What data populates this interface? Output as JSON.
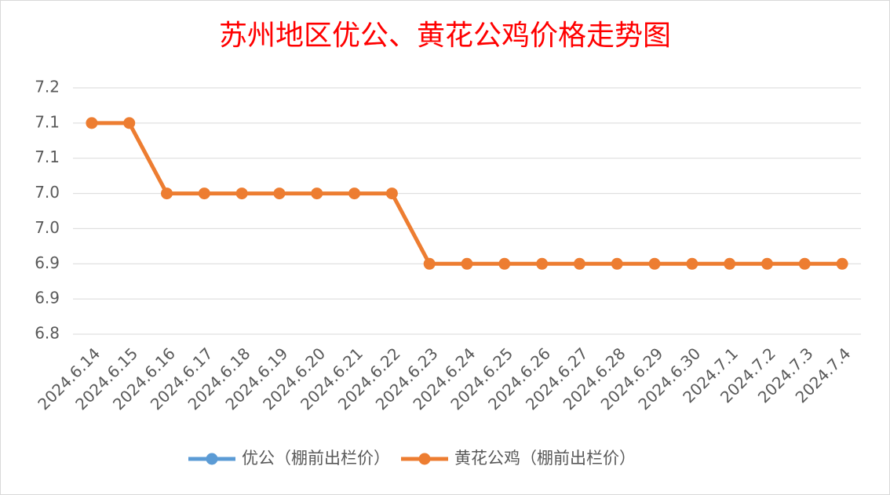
{
  "chart_data": {
    "type": "line",
    "title": "苏州地区优公、黄花公鸡价格走势图",
    "categories": [
      "2024.6.14",
      "2024.6.15",
      "2024.6.16",
      "2024.6.17",
      "2024.6.18",
      "2024.6.19",
      "2024.6.20",
      "2024.6.21",
      "2024.6.22",
      "2024.6.23",
      "2024.6.24",
      "2024.6.25",
      "2024.6.26",
      "2024.6.27",
      "2024.6.28",
      "2024.6.29",
      "2024.6.30",
      "2024.7.1",
      "2024.7.2",
      "2024.7.3",
      "2024.7.4"
    ],
    "series": [
      {
        "name": "优公（棚前出栏价）",
        "color": "#5b9bd5",
        "values": [
          null,
          null,
          null,
          null,
          null,
          null,
          null,
          null,
          null,
          null,
          null,
          null,
          null,
          null,
          null,
          null,
          null,
          null,
          null,
          null,
          null
        ]
      },
      {
        "name": "黄花公鸡（棚前出栏价）",
        "color": "#ed7d31",
        "values": [
          7.15,
          7.15,
          7.05,
          7.05,
          7.05,
          7.05,
          7.05,
          7.05,
          7.05,
          6.95,
          6.95,
          6.95,
          6.95,
          6.95,
          6.95,
          6.95,
          6.95,
          6.95,
          6.95,
          6.95,
          6.95
        ]
      }
    ],
    "ylim": [
      6.85,
      7.2
    ],
    "yticks": [
      {
        "value": 6.85,
        "label": "6.8"
      },
      6.9,
      {
        "value": 6.95,
        "label": "6.9"
      },
      {
        "value": 7.0,
        "label": "7.0"
      },
      {
        "value": 7.05,
        "label": "7.0"
      },
      7.1,
      {
        "value": 7.15,
        "label": "7.1"
      },
      7.2
    ],
    "grid": true,
    "legend": "bottom"
  }
}
